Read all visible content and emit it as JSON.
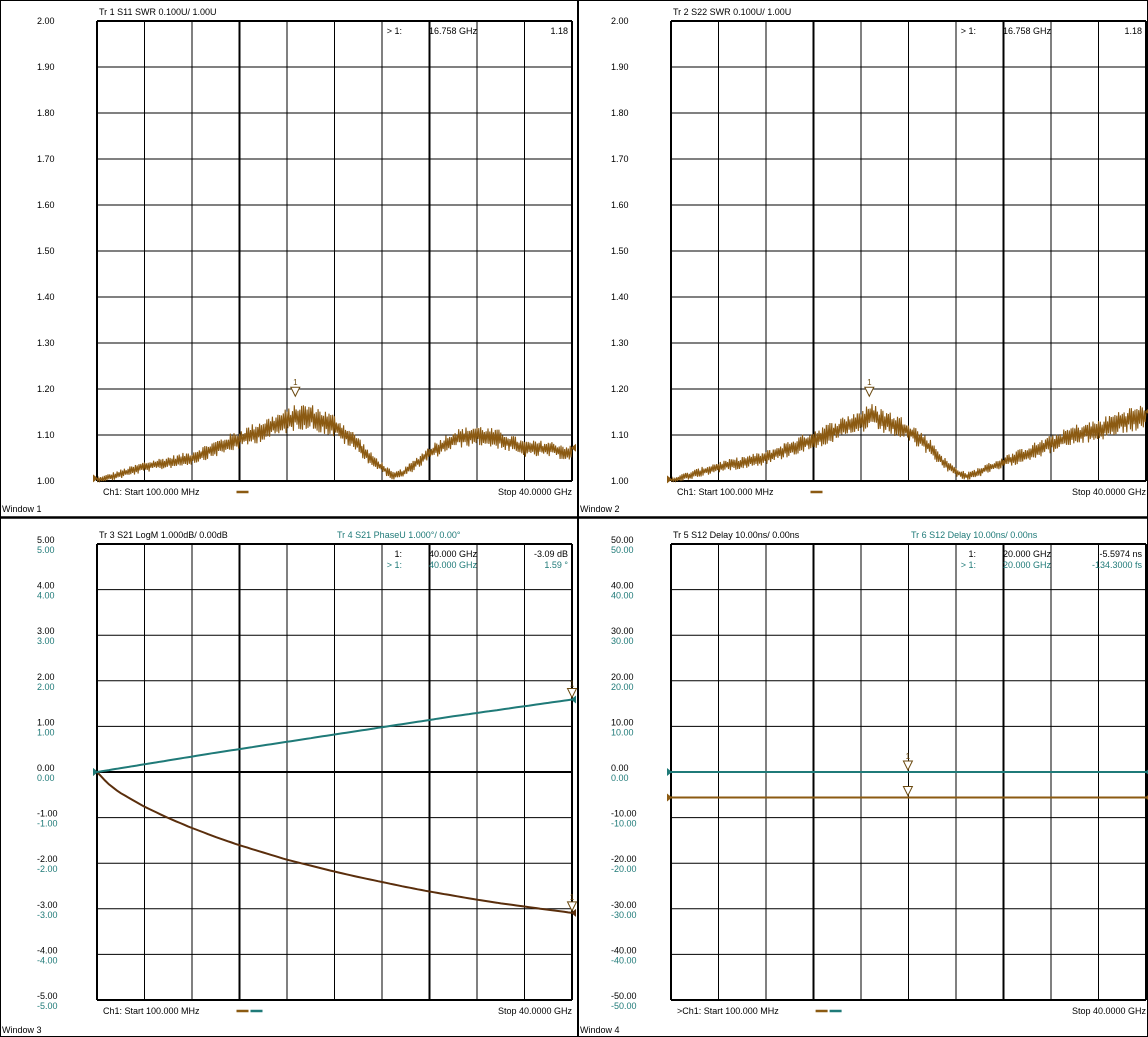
{
  "colors": {
    "brown": "#8B5A12",
    "dark_brown": "#5a2e0c",
    "teal": "#1f7a78",
    "grid": "#000000",
    "background": "#ffffff"
  },
  "windows": [
    {
      "id": 1,
      "label": "Window 1",
      "y_ticks": [
        [
          "2.00"
        ],
        [
          "1.90"
        ],
        [
          "1.80"
        ],
        [
          "1.70"
        ],
        [
          "1.60"
        ],
        [
          "1.50"
        ],
        [
          "1.40"
        ],
        [
          "1.30"
        ],
        [
          "1.20"
        ],
        [
          "1.10"
        ],
        [
          "1.00"
        ]
      ],
      "trace_headers": [
        {
          "text": "Tr  1  S11 SWR 0.100U/  1.00U",
          "color": "#000000"
        }
      ],
      "marker_rows": [
        {
          "prefix": "> 1:",
          "freq": "16.758 GHz",
          "value": "1.18",
          "color": "#000000"
        }
      ],
      "footer_start": "Ch1:  Start   100.000 MHz",
      "footer_stop": "Stop  40.0000 GHz",
      "legend_colors": [
        "#8B5A12"
      ]
    },
    {
      "id": 2,
      "label": "Window 2",
      "y_ticks": [
        [
          "2.00"
        ],
        [
          "1.90"
        ],
        [
          "1.80"
        ],
        [
          "1.70"
        ],
        [
          "1.60"
        ],
        [
          "1.50"
        ],
        [
          "1.40"
        ],
        [
          "1.30"
        ],
        [
          "1.20"
        ],
        [
          "1.10"
        ],
        [
          "1.00"
        ]
      ],
      "trace_headers": [
        {
          "text": "Tr  2  S22 SWR 0.100U/  1.00U",
          "color": "#000000"
        }
      ],
      "marker_rows": [
        {
          "prefix": "> 1:",
          "freq": "16.758 GHz",
          "value": "1.18",
          "color": "#000000"
        }
      ],
      "footer_start": "Ch1:  Start   100.000 MHz",
      "footer_stop": "Stop  40.0000 GHz",
      "legend_colors": [
        "#8B5A12"
      ]
    },
    {
      "id": 3,
      "label": "Window 3",
      "y_ticks": [
        [
          "5.00",
          "5.00"
        ],
        [
          "4.00",
          "4.00"
        ],
        [
          "3.00",
          "3.00"
        ],
        [
          "2.00",
          "2.00"
        ],
        [
          "1.00",
          "1.00"
        ],
        [
          "0.00",
          "0.00"
        ],
        [
          "-1.00",
          "-1.00"
        ],
        [
          "-2.00",
          "-2.00"
        ],
        [
          "-3.00",
          "-3.00"
        ],
        [
          "-4.00",
          "-4.00"
        ],
        [
          "-5.00",
          "-5.00"
        ]
      ],
      "trace_headers": [
        {
          "text": "Tr  3  S21 LogM 1.000dB/  0.00dB",
          "color": "#000000"
        },
        {
          "text": "Tr  4  S21 PhaseU 1.000°/  0.00°",
          "color": "#1f7a78"
        }
      ],
      "marker_rows": [
        {
          "prefix": "1:",
          "freq": "40.000 GHz",
          "value": "-3.09 dB",
          "color": "#000000"
        },
        {
          "prefix": "> 1:",
          "freq": "40.000 GHz",
          "value": "1.59 °",
          "color": "#1f7a78"
        }
      ],
      "footer_start": "Ch1:  Start   100.000 MHz",
      "footer_stop": "Stop  40.0000 GHz",
      "legend_colors": [
        "#8B5A12",
        "#1f7a78"
      ]
    },
    {
      "id": 4,
      "label": "Window 4",
      "y_ticks": [
        [
          "50.00",
          "50.00"
        ],
        [
          "40.00",
          "40.00"
        ],
        [
          "30.00",
          "30.00"
        ],
        [
          "20.00",
          "20.00"
        ],
        [
          "10.00",
          "10.00"
        ],
        [
          "0.00",
          "0.00"
        ],
        [
          "-10.00",
          "-10.00"
        ],
        [
          "-20.00",
          "-20.00"
        ],
        [
          "-30.00",
          "-30.00"
        ],
        [
          "-40.00",
          "-40.00"
        ],
        [
          "-50.00",
          "-50.00"
        ]
      ],
      "trace_headers": [
        {
          "text": "Tr  5  S12 Delay 10.00ns/  0.00ns",
          "color": "#000000"
        },
        {
          "text": "Tr  6  S12 Delay 10.00ns/  0.00ns",
          "color": "#1f7a78"
        }
      ],
      "marker_rows": [
        {
          "prefix": "1:",
          "freq": "20.000 GHz",
          "value": "-5.5974 ns",
          "color": "#000000"
        },
        {
          "prefix": "> 1:",
          "freq": "20.000 GHz",
          "value": "-134.3000 fs",
          "color": "#1f7a78"
        }
      ],
      "footer_start": ">Ch1:  Start   100.000 MHz",
      "footer_stop": "Stop  40.0000 GHz",
      "legend_colors": [
        "#8B5A12",
        "#1f7a78"
      ]
    }
  ],
  "chart_data": [
    {
      "type": "line",
      "window": 1,
      "x_unit": "GHz",
      "xlim": [
        0.1,
        40
      ],
      "ylim": [
        1.0,
        2.0
      ],
      "grid": true,
      "series": [
        {
          "color": "#8B5A12",
          "kind": "swr_noisy",
          "envelope_x": [
            0.1,
            4,
            8,
            12,
            14,
            16,
            17,
            18,
            20,
            22,
            23,
            24,
            25,
            26,
            28,
            30,
            32,
            34,
            36,
            38,
            40
          ],
          "envelope_y": [
            1.0,
            1.03,
            1.05,
            1.09,
            1.11,
            1.13,
            1.14,
            1.14,
            1.12,
            1.08,
            1.05,
            1.03,
            1.01,
            1.02,
            1.06,
            1.09,
            1.1,
            1.09,
            1.07,
            1.07,
            1.06
          ],
          "ripple": 0.035
        }
      ],
      "markers": [
        {
          "label": "1",
          "x": 16.758,
          "y": 1.18
        }
      ]
    },
    {
      "type": "line",
      "window": 2,
      "x_unit": "GHz",
      "xlim": [
        0.1,
        40
      ],
      "ylim": [
        1.0,
        2.0
      ],
      "grid": true,
      "series": [
        {
          "color": "#8B5A12",
          "kind": "swr_noisy",
          "envelope_x": [
            0.1,
            4,
            8,
            12,
            14,
            16,
            17,
            18,
            20,
            22,
            23,
            24,
            25,
            26,
            28,
            30,
            32,
            34,
            36,
            38,
            40
          ],
          "envelope_y": [
            1.0,
            1.03,
            1.05,
            1.09,
            1.11,
            1.13,
            1.14,
            1.13,
            1.11,
            1.07,
            1.04,
            1.02,
            1.01,
            1.02,
            1.04,
            1.06,
            1.08,
            1.1,
            1.11,
            1.13,
            1.14
          ],
          "ripple": 0.035
        }
      ],
      "markers": [
        {
          "label": "1",
          "x": 16.758,
          "y": 1.18
        }
      ]
    },
    {
      "type": "line",
      "window": 3,
      "x_unit": "GHz",
      "xlim": [
        0.1,
        40
      ],
      "ylim": [
        -5,
        5
      ],
      "grid": true,
      "series": [
        {
          "color": "#5a2e0c",
          "kind": "smooth",
          "x": [
            0.1,
            1,
            2,
            4,
            6,
            8,
            10,
            12,
            14,
            16,
            18,
            20,
            22,
            24,
            26,
            28,
            30,
            32,
            34,
            36,
            38,
            40
          ],
          "y": [
            0.0,
            -0.25,
            -0.45,
            -0.75,
            -1.0,
            -1.22,
            -1.42,
            -1.6,
            -1.76,
            -1.92,
            -2.05,
            -2.18,
            -2.3,
            -2.41,
            -2.52,
            -2.62,
            -2.71,
            -2.8,
            -2.88,
            -2.95,
            -3.02,
            -3.09
          ]
        },
        {
          "color": "#1f7a78",
          "kind": "smooth",
          "x": [
            0.1,
            10,
            20,
            30,
            40
          ],
          "y": [
            0.0,
            0.42,
            0.82,
            1.22,
            1.59
          ]
        }
      ],
      "markers": [
        {
          "label": "1",
          "x": 40,
          "y": -3.09
        },
        {
          "label": "1",
          "x": 40,
          "y": 1.59
        }
      ]
    },
    {
      "type": "line",
      "window": 4,
      "x_unit": "GHz",
      "xlim": [
        0.1,
        40
      ],
      "ylim": [
        -50,
        50
      ],
      "grid": true,
      "series": [
        {
          "color": "#8B5A12",
          "kind": "smooth",
          "x": [
            0.1,
            40
          ],
          "y": [
            -5.5974,
            -5.5974
          ]
        },
        {
          "color": "#1f7a78",
          "kind": "smooth",
          "x": [
            0.1,
            40
          ],
          "y": [
            0.0,
            0.0
          ]
        }
      ],
      "markers": [
        {
          "label": "1",
          "x": 20,
          "y": 0.0
        },
        {
          "label": "",
          "x": 20,
          "y": -5.5974
        }
      ]
    }
  ]
}
